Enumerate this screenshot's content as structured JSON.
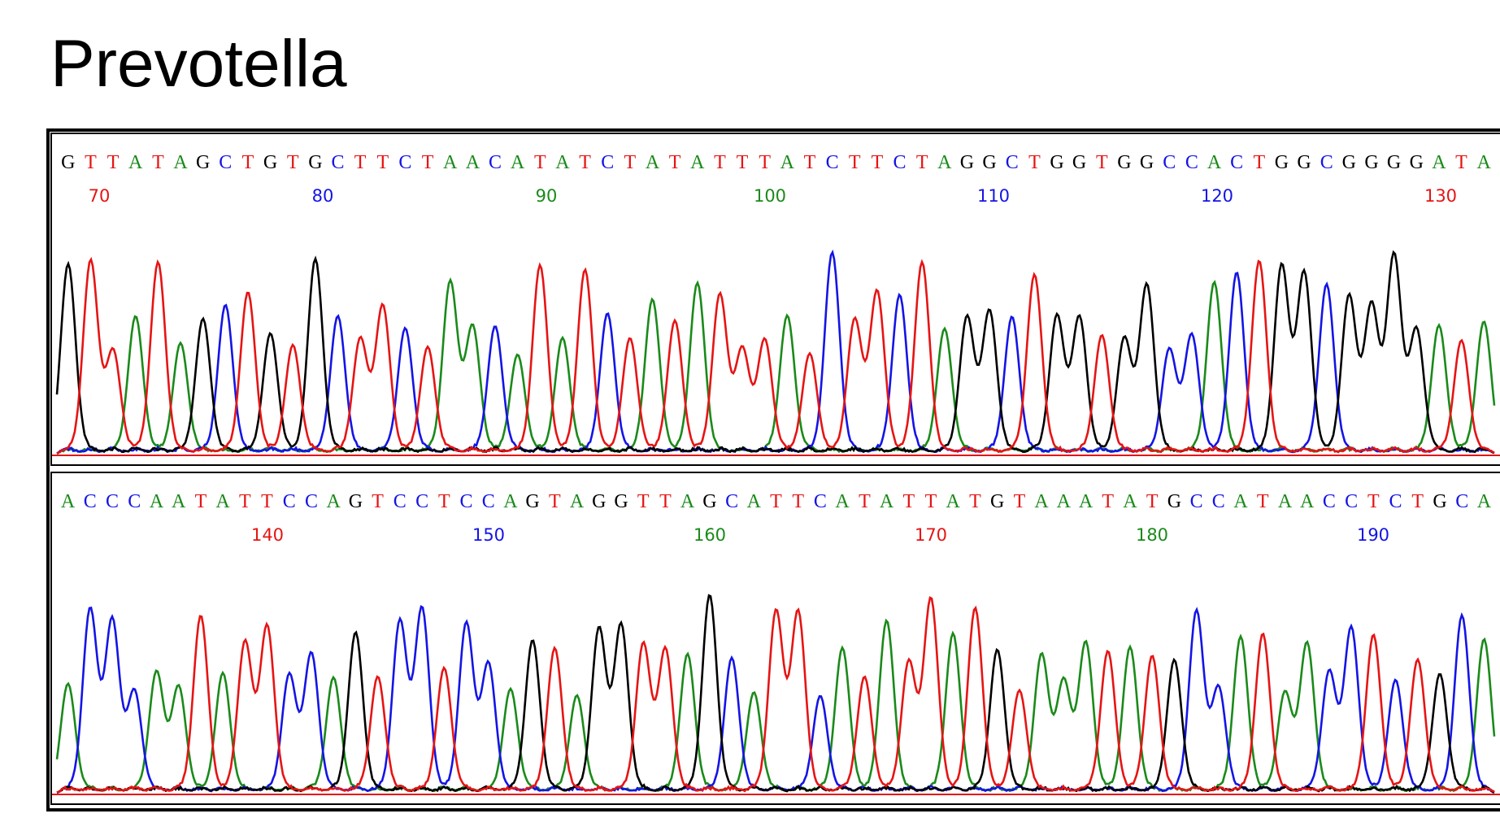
{
  "title": "Prevotella",
  "colors": {
    "A": "#1a8a1a",
    "C": "#1414e6",
    "G": "#000000",
    "T": "#e61414"
  },
  "panels": [
    {
      "sequence": "GTTATAGCTGTGCTTCTAACATATCTATATTTATCTTCTAGGCTGGTGGCCACTGGCGGGGATA",
      "positions": [
        "70",
        "80",
        "90",
        "100",
        "110",
        "120",
        "130"
      ],
      "position_colors": [
        "T",
        "C",
        "A",
        "A",
        "C",
        "C",
        "T"
      ]
    },
    {
      "sequence": "ACCCAATATTCCAGTCCTCCAGTAGGTTAGCATTCATATTATGTAAATATGCCATAACCTCTGCA",
      "positions": [
        "140",
        "150",
        "160",
        "170",
        "180",
        "190"
      ],
      "position_colors": [
        "T",
        "C",
        "A",
        "T",
        "A",
        "C"
      ]
    }
  ]
}
